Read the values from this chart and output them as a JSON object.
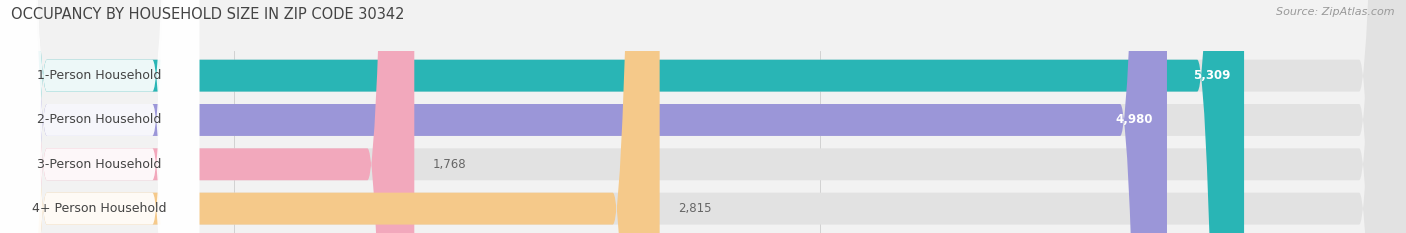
{
  "title": "OCCUPANCY BY HOUSEHOLD SIZE IN ZIP CODE 30342",
  "source": "Source: ZipAtlas.com",
  "categories": [
    "1-Person Household",
    "2-Person Household",
    "3-Person Household",
    "4+ Person Household"
  ],
  "values": [
    5309,
    4980,
    1768,
    2815
  ],
  "bar_colors": [
    "#29b5b5",
    "#9b96d8",
    "#f2a8bc",
    "#f5c98a"
  ],
  "xlim_data": [
    0,
    6000
  ],
  "xticks": [
    1000,
    3500,
    6000
  ],
  "background_color": "#f2f2f2",
  "bar_bg_color": "#e2e2e2",
  "bar_height": 0.72,
  "title_fontsize": 10.5,
  "label_fontsize": 9,
  "value_fontsize": 8.5,
  "source_fontsize": 8,
  "label_bg_color": "#ffffff",
  "value_inside_color": "white",
  "value_outside_color": "#666666",
  "inside_threshold": 3500,
  "grid_color": "#cccccc",
  "tick_color": "#999999"
}
